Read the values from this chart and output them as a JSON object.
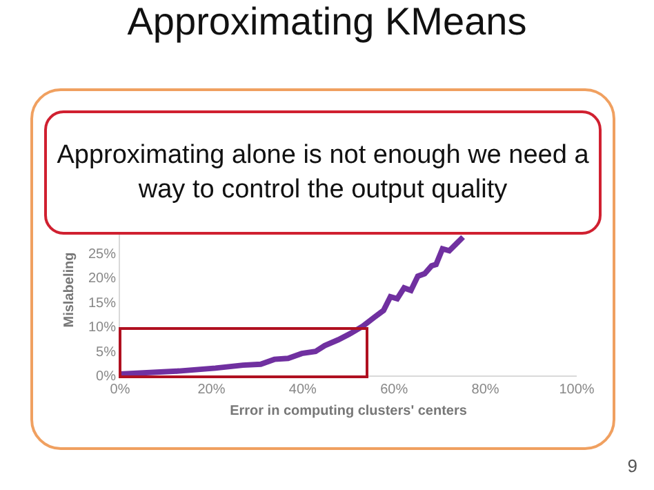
{
  "chart_data": {
    "type": "line",
    "title": "Approximating KMeans",
    "xlabel": "Error in computing clusters' centers",
    "ylabel": "Mislabeling",
    "x": [
      0,
      12.9,
      20.9,
      26.9,
      30.8,
      33.8,
      36.8,
      39.8,
      42.8,
      44.8,
      47.8,
      50.7,
      53.2,
      55.7,
      57.7,
      59.2,
      60.7,
      62.2,
      63.7,
      65.2,
      66.7,
      68.2,
      69.2,
      70.6,
      72.1,
      73.6,
      75.1
    ],
    "series": [
      {
        "color": "#7030a0",
        "values": [
          0.3,
          0.9,
          1.5,
          2.1,
          2.3,
          3.3,
          3.5,
          4.5,
          4.9,
          6.1,
          7.3,
          8.7,
          10.1,
          11.9,
          13.3,
          16.1,
          15.7,
          17.9,
          17.4,
          20.3,
          20.8,
          22.4,
          22.7,
          25.9,
          25.5,
          26.9,
          28.3
        ]
      }
    ],
    "xlim": [
      0,
      100
    ],
    "xticks": [
      {
        "value": 0,
        "label": "0%"
      },
      {
        "value": 20,
        "label": "20%"
      },
      {
        "value": 40,
        "label": "40%"
      },
      {
        "value": 60,
        "label": "60%"
      },
      {
        "value": 80,
        "label": "80%"
      },
      {
        "value": 100,
        "label": "100%"
      }
    ],
    "ylim": [
      0,
      35
    ],
    "yticks": [
      {
        "value": 0,
        "label": "0%"
      },
      {
        "value": 5,
        "label": "5%"
      },
      {
        "value": 10,
        "label": "10%"
      },
      {
        "value": 15,
        "label": "15%"
      },
      {
        "value": 20,
        "label": "20%"
      },
      {
        "value": 25,
        "label": "25%"
      }
    ],
    "grid": false,
    "marker": "none",
    "line_style": "solid",
    "annotations": [
      "Approximating alone is not enough we need a way to control the output quality",
      "9"
    ]
  }
}
